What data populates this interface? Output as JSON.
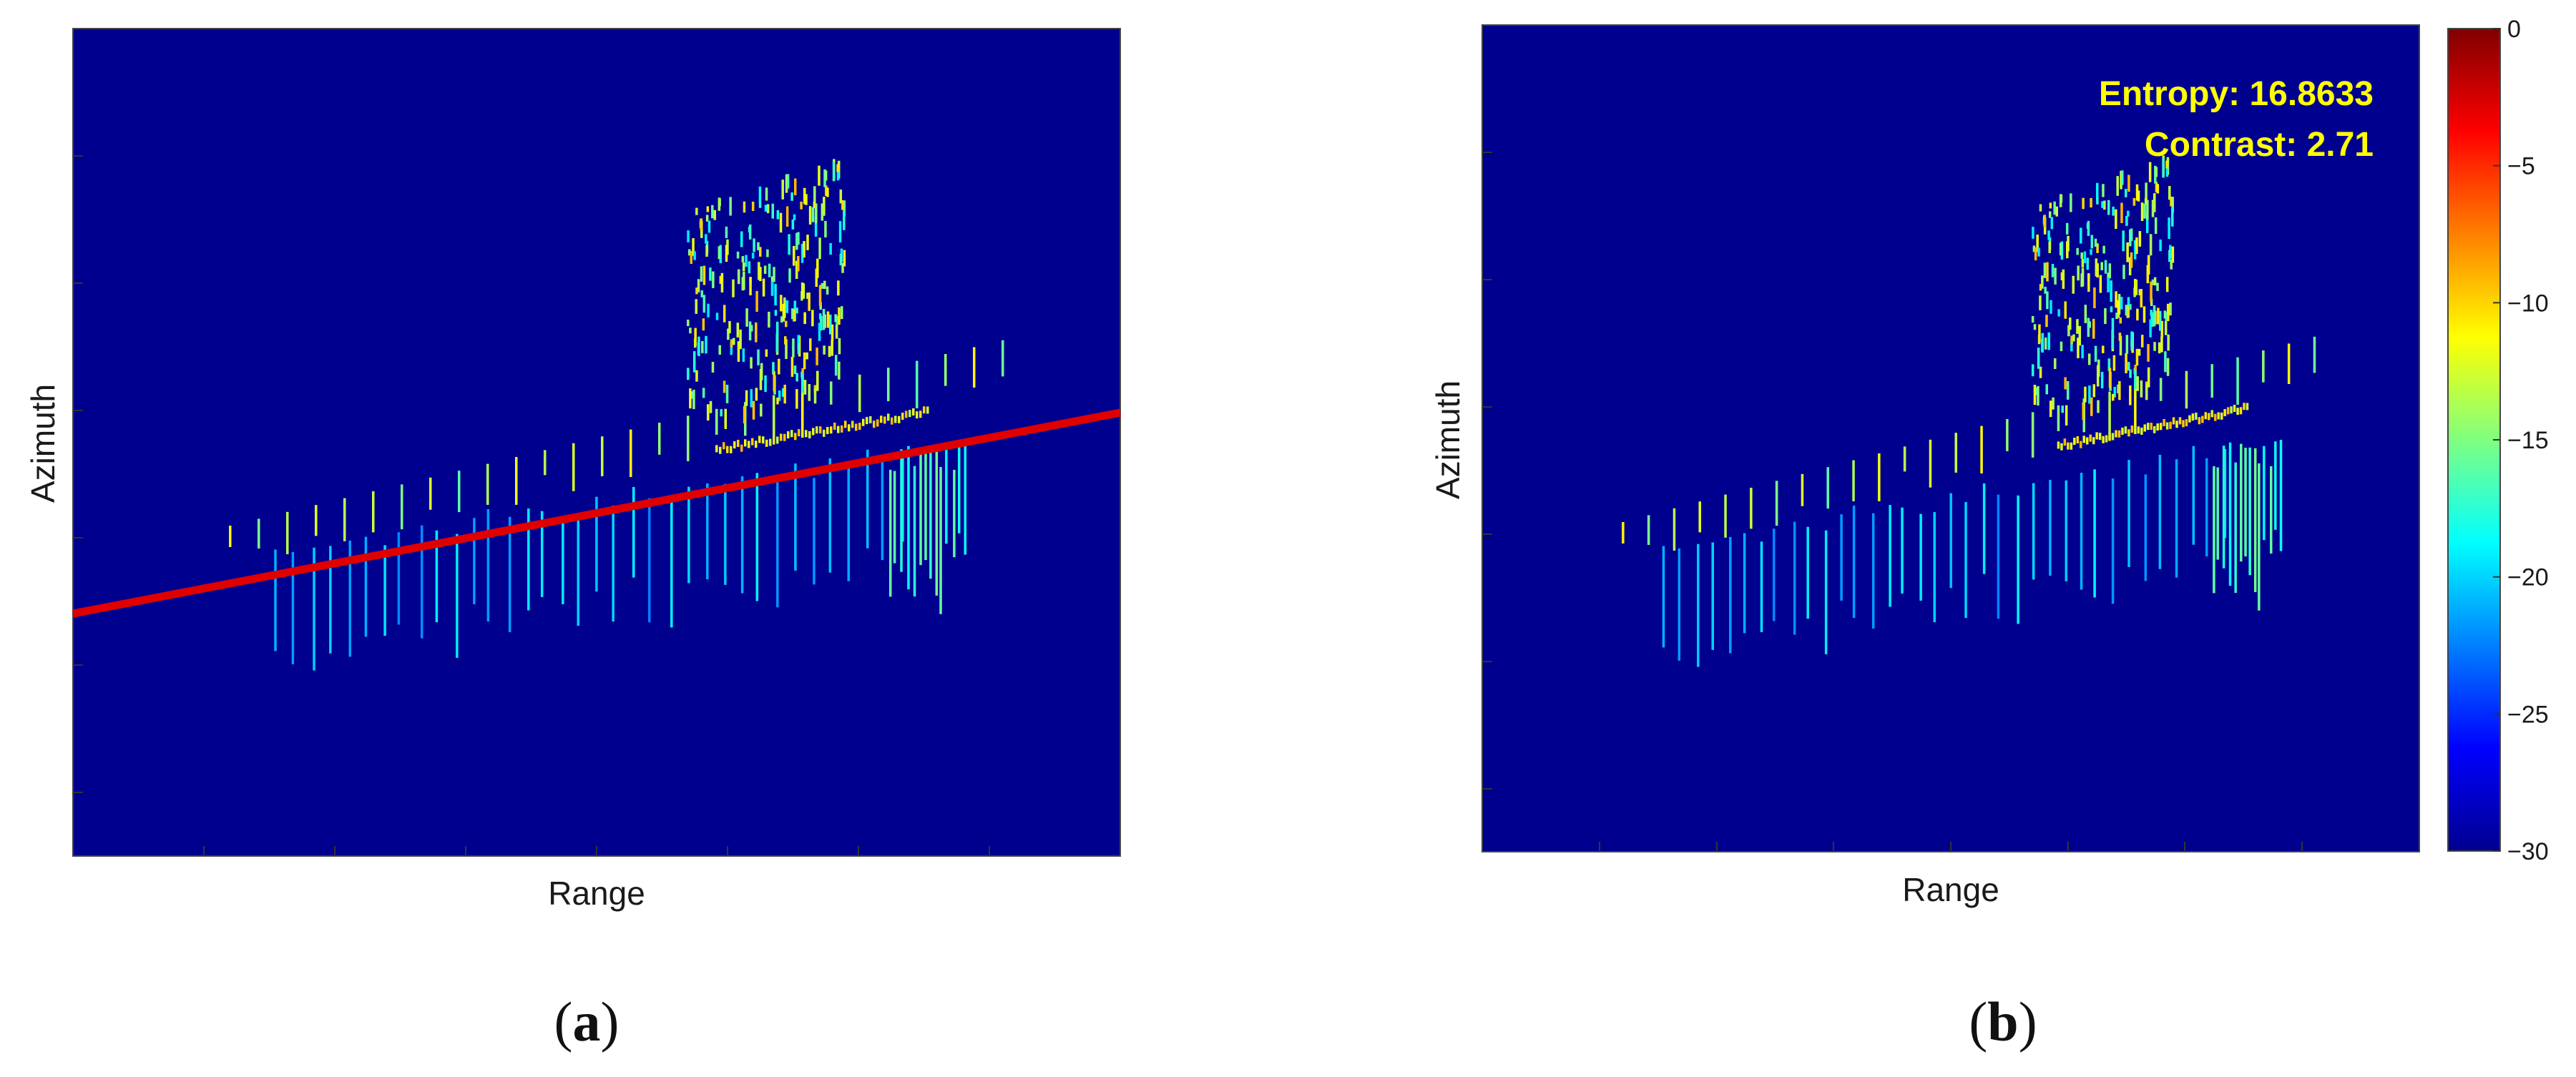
{
  "chart_data": [
    {
      "type": "heatmap",
      "panel_label": "a",
      "xlabel": "Range",
      "ylabel": "Azimuth",
      "background": "#00008f",
      "overlay_line_color": "#e00000",
      "annotations": []
    },
    {
      "type": "heatmap",
      "panel_label": "b",
      "xlabel": "Range",
      "ylabel": "Azimuth",
      "background": "#00008f",
      "annotations": [
        "Entropy: 16.8633",
        "Contrast: 2.71"
      ],
      "colorbar": {
        "colormap": "jet",
        "range": [
          -30,
          0
        ],
        "ticks": [
          0,
          -5,
          -10,
          -15,
          -20,
          -25,
          -30
        ],
        "tick_labels": [
          "0",
          "−5",
          "−10",
          "−15",
          "−20",
          "−25",
          "−30"
        ]
      }
    }
  ]
}
